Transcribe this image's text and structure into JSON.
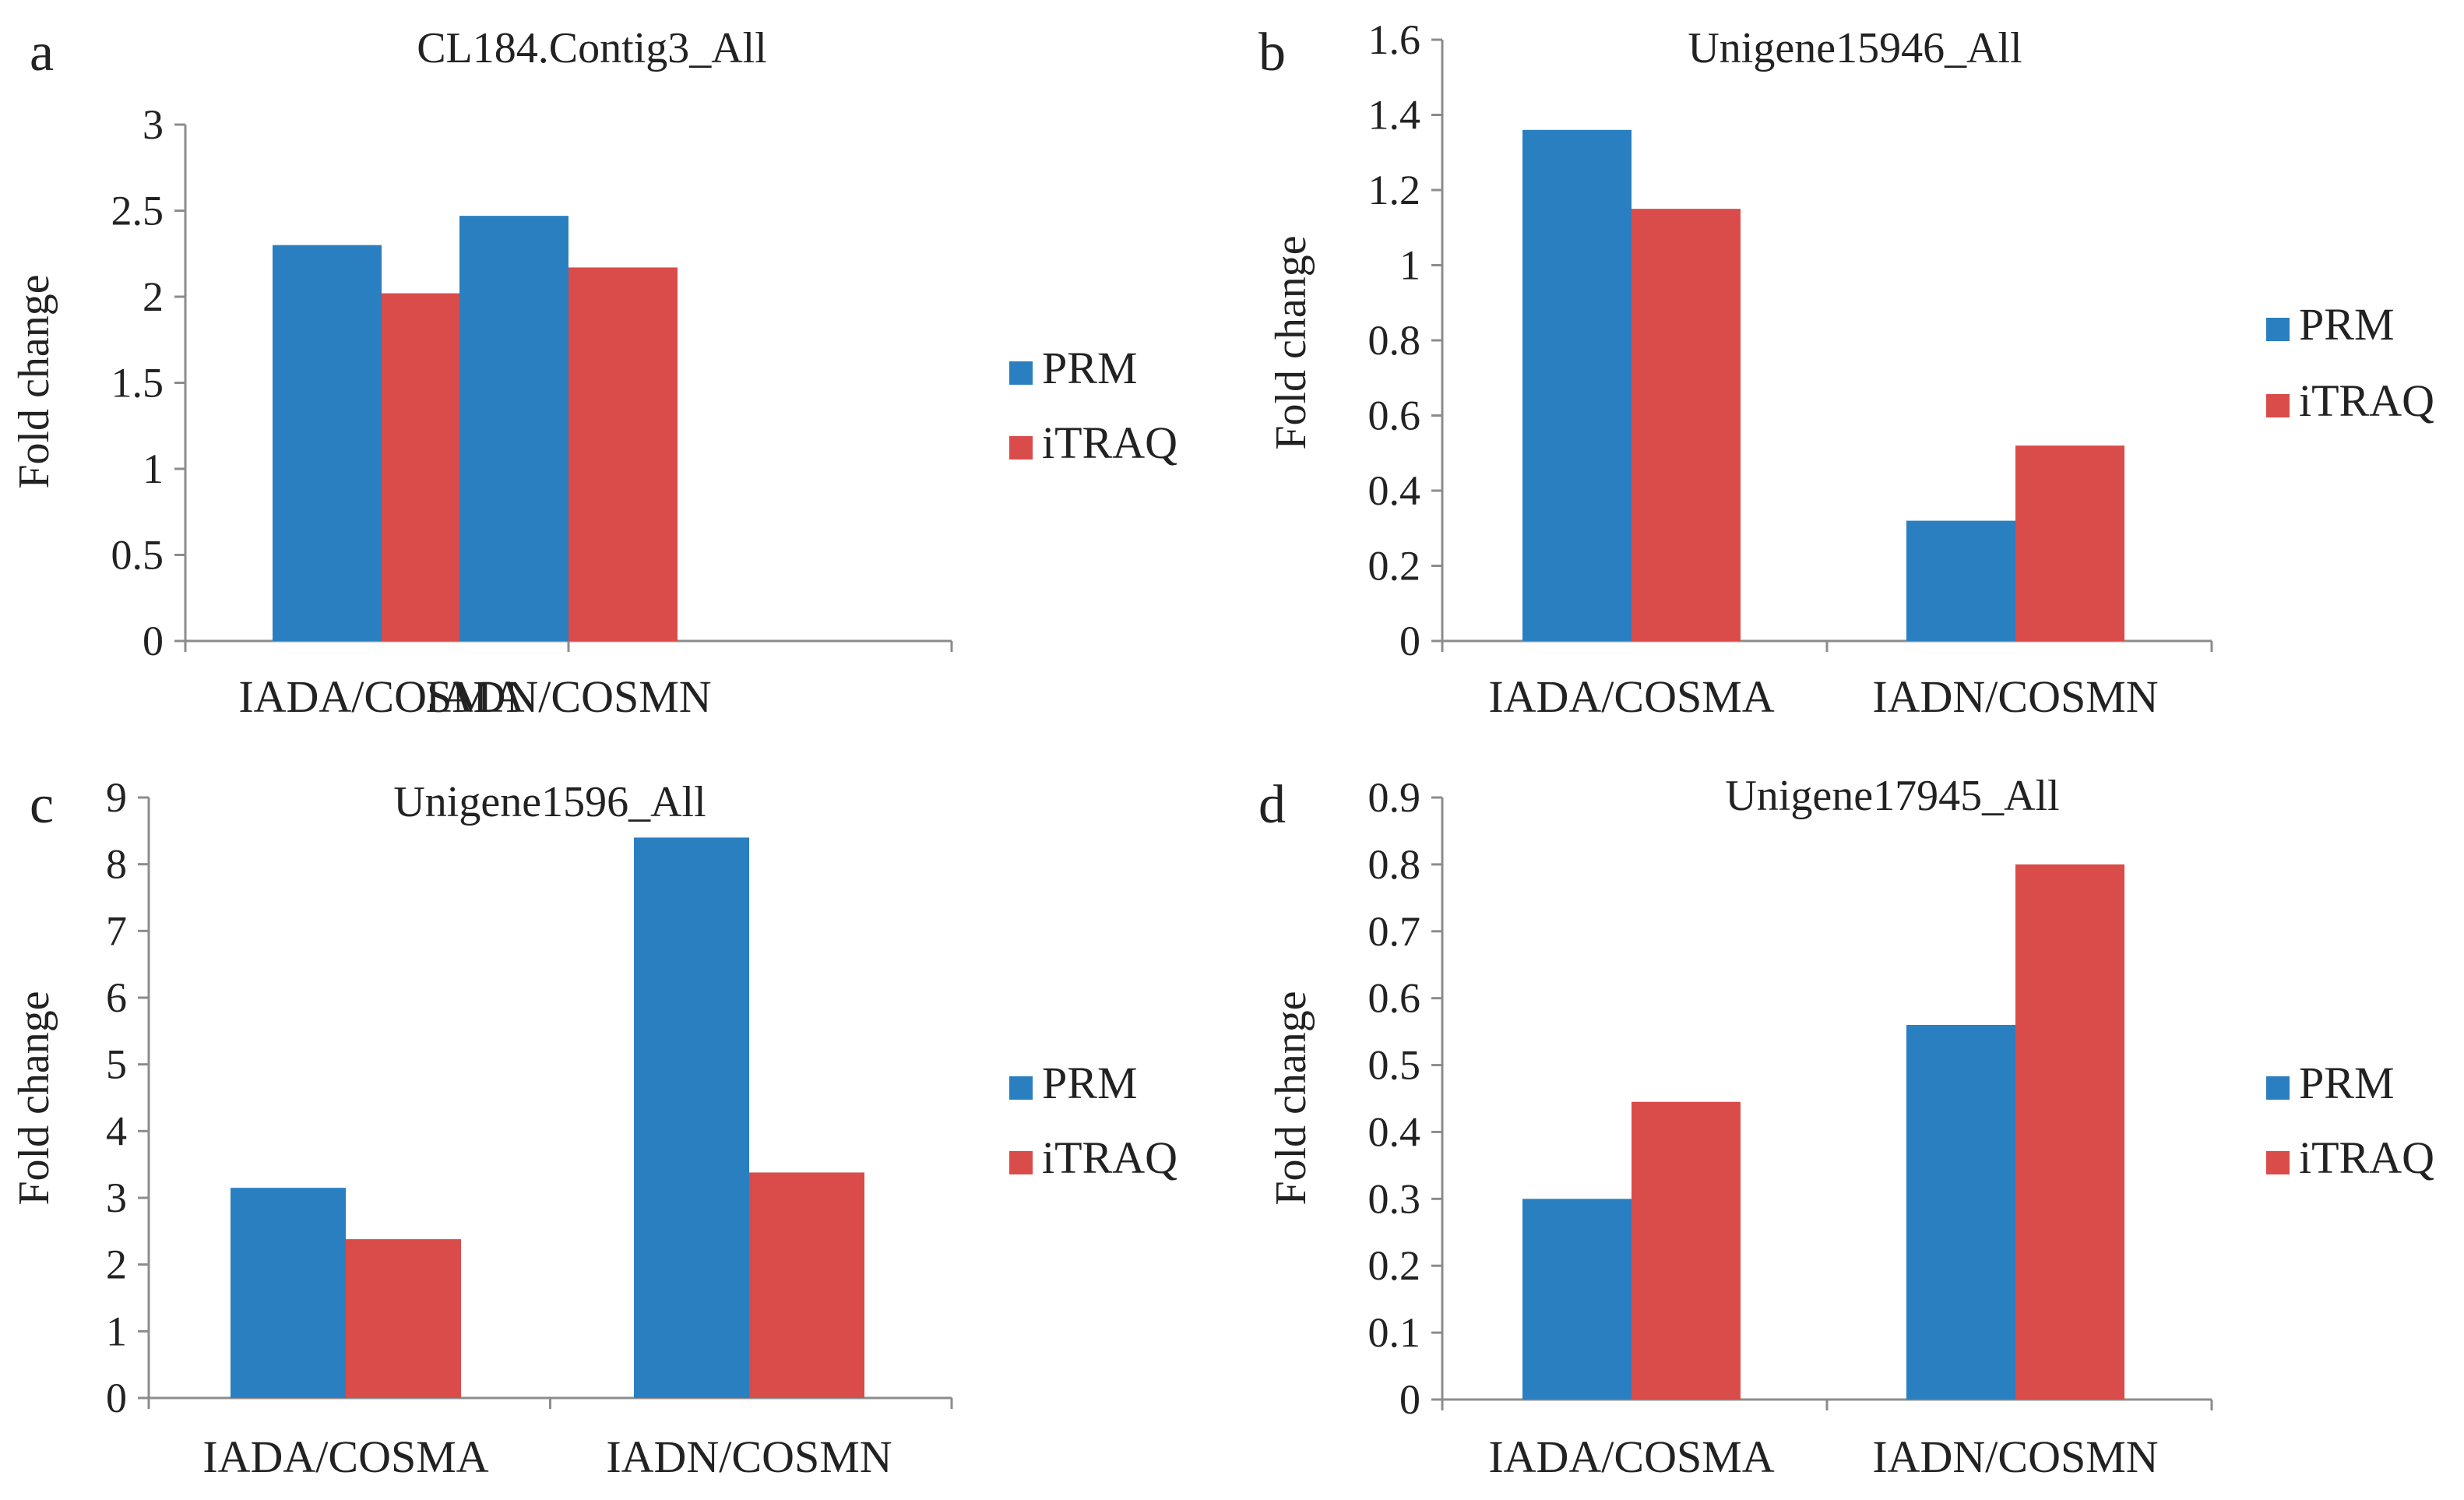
{
  "chart_data": [
    {
      "panel": "a",
      "type": "bar",
      "title": "CL184.Contig3_All",
      "ylabel": "Fold change",
      "xlabel": "",
      "categories": [
        "IADA/COSMA",
        "IADN/COSMN"
      ],
      "ylim": [
        0,
        3
      ],
      "yticks": [
        0,
        0.5,
        1,
        1.5,
        2,
        2.5,
        3
      ],
      "ytick_labels": [
        "0",
        "0.5",
        "1",
        "1.5",
        "2",
        "2.5",
        "3"
      ],
      "series": [
        {
          "name": "PRM",
          "color": "#2a7fc1",
          "values": [
            2.3,
            2.47
          ]
        },
        {
          "name": "iTRAQ",
          "color": "#d94c4a",
          "values": [
            2.02,
            2.17
          ]
        }
      ],
      "legend": "right"
    },
    {
      "panel": "b",
      "type": "bar",
      "title": "Unigene15946_All",
      "ylabel": "Fold change",
      "xlabel": "",
      "categories": [
        "IADA/COSMA",
        "IADN/COSMN"
      ],
      "ylim": [
        0,
        1.6
      ],
      "yticks": [
        0,
        0.2,
        0.4,
        0.6,
        0.8,
        1,
        1.2,
        1.4,
        1.6
      ],
      "ytick_labels": [
        "0",
        "0.2",
        "0.4",
        "0.6",
        "0.8",
        "1",
        "1.2",
        "1.4",
        "1.6"
      ],
      "series": [
        {
          "name": "PRM",
          "color": "#2a7fc1",
          "values": [
            1.36,
            0.32
          ]
        },
        {
          "name": "iTRAQ",
          "color": "#d94c4a",
          "values": [
            1.15,
            0.52
          ]
        }
      ],
      "legend": "right"
    },
    {
      "panel": "c",
      "type": "bar",
      "title": "Unigene1596_All",
      "ylabel": "Fold change",
      "xlabel": "",
      "categories": [
        "IADA/COSMA",
        "IADN/COSMN"
      ],
      "ylim": [
        0,
        9
      ],
      "yticks": [
        0,
        1,
        2,
        3,
        4,
        5,
        6,
        7,
        8,
        9
      ],
      "ytick_labels": [
        "0",
        "1",
        "2",
        "3",
        "4",
        "5",
        "6",
        "7",
        "8",
        "9"
      ],
      "series": [
        {
          "name": "PRM",
          "color": "#2a7fc1",
          "values": [
            3.15,
            8.4
          ]
        },
        {
          "name": "iTRAQ",
          "color": "#d94c4a",
          "values": [
            2.38,
            3.38
          ]
        }
      ],
      "legend": "right"
    },
    {
      "panel": "d",
      "type": "bar",
      "title": "Unigene17945_All",
      "ylabel": "Fold change",
      "xlabel": "",
      "categories": [
        "IADA/COSMA",
        "IADN/COSMN"
      ],
      "ylim": [
        0,
        0.9
      ],
      "yticks": [
        0,
        0.1,
        0.2,
        0.3,
        0.4,
        0.5,
        0.6,
        0.7,
        0.8,
        0.9
      ],
      "ytick_labels": [
        "0",
        "0.1",
        "0.2",
        "0.3",
        "0.4",
        "0.5",
        "0.6",
        "0.7",
        "0.8",
        "0.9"
      ],
      "series": [
        {
          "name": "PRM",
          "color": "#2a7fc1",
          "values": [
            0.3,
            0.56
          ]
        },
        {
          "name": "iTRAQ",
          "color": "#d94c4a",
          "values": [
            0.445,
            0.8
          ]
        }
      ],
      "legend": "right"
    }
  ]
}
